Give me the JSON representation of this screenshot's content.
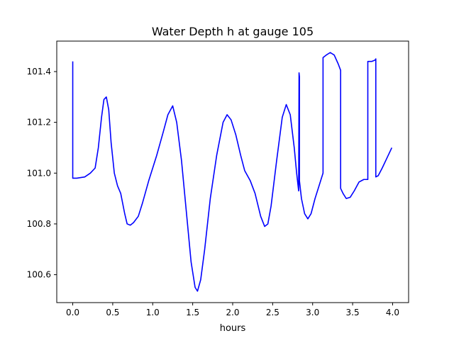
{
  "chart_data": {
    "type": "line",
    "title": "Water Depth h at gauge 105",
    "xlabel": "hours",
    "ylabel": "",
    "xlim": [
      -0.2,
      4.2
    ],
    "ylim": [
      100.49,
      101.52
    ],
    "xticks": [
      0.0,
      0.5,
      1.0,
      1.5,
      2.0,
      2.5,
      3.0,
      3.5,
      4.0
    ],
    "xtick_labels": [
      "0.0",
      "0.5",
      "1.0",
      "1.5",
      "2.0",
      "2.5",
      "3.0",
      "3.5",
      "4.0"
    ],
    "yticks": [
      100.6,
      100.8,
      101.0,
      101.2,
      101.4
    ],
    "ytick_labels": [
      "100.6",
      "100.8",
      "101.0",
      "101.2",
      "101.4"
    ],
    "grid": false,
    "line_color": "#0000ff",
    "series": [
      {
        "x": [
          0.0,
          0.0,
          0.05,
          0.15,
          0.22,
          0.28,
          0.32,
          0.36,
          0.39,
          0.42,
          0.45,
          0.48,
          0.52,
          0.56,
          0.6,
          0.65,
          0.68,
          0.72,
          0.76,
          0.82,
          0.87,
          0.95,
          1.05,
          1.13,
          1.19,
          1.25,
          1.3,
          1.36,
          1.42,
          1.48,
          1.53,
          1.56,
          1.6,
          1.65,
          1.72,
          1.8,
          1.88,
          1.93,
          1.98,
          2.04,
          2.1,
          2.15,
          2.22,
          2.28,
          2.35,
          2.4,
          2.44,
          2.48,
          2.55,
          2.62,
          2.67,
          2.72,
          2.77,
          2.8,
          2.825,
          2.83,
          2.83,
          2.835,
          2.835,
          2.86,
          2.9,
          2.94,
          2.98,
          3.03,
          3.08,
          3.13,
          3.13,
          3.17,
          3.22,
          3.27,
          3.32,
          3.35,
          3.35,
          3.38,
          3.42,
          3.47,
          3.52,
          3.58,
          3.64,
          3.69,
          3.69,
          3.74,
          3.78,
          3.79,
          3.79,
          3.82,
          3.87,
          3.93,
          3.99
        ],
        "y": [
          101.44,
          100.98,
          100.98,
          100.985,
          101.0,
          101.02,
          101.1,
          101.22,
          101.29,
          101.3,
          101.25,
          101.12,
          101.0,
          100.95,
          100.92,
          100.84,
          100.8,
          100.795,
          100.805,
          100.83,
          100.88,
          100.97,
          101.07,
          101.16,
          101.23,
          101.265,
          101.2,
          101.05,
          100.85,
          100.65,
          100.55,
          100.535,
          100.58,
          100.7,
          100.9,
          101.07,
          101.2,
          101.23,
          101.21,
          101.15,
          101.07,
          101.01,
          100.97,
          100.92,
          100.83,
          100.79,
          100.8,
          100.87,
          101.05,
          101.22,
          101.27,
          101.23,
          101.1,
          101.0,
          100.93,
          101.395,
          101.395,
          101.38,
          100.97,
          100.9,
          100.84,
          100.82,
          100.84,
          100.9,
          100.95,
          101.0,
          101.455,
          101.465,
          101.475,
          101.465,
          101.43,
          101.405,
          100.94,
          100.92,
          100.9,
          100.905,
          100.93,
          100.965,
          100.975,
          100.975,
          101.44,
          101.44,
          101.445,
          101.45,
          100.985,
          100.99,
          101.02,
          101.06,
          101.1
        ]
      }
    ]
  }
}
